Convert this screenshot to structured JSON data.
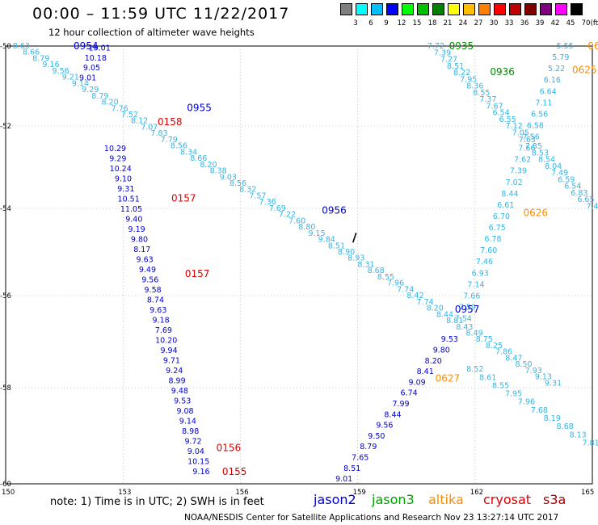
{
  "header": {
    "title": "00:00 – 11:59 UTC 11/22/2017",
    "subtitle": "12 hour collection of altimeter wave heights"
  },
  "legend": {
    "unit": "(ft)",
    "bins": [
      {
        "label": "3",
        "color": "#7f7f7f"
      },
      {
        "label": "6",
        "color": "#00ffff"
      },
      {
        "label": "9",
        "color": "#00bfff"
      },
      {
        "label": "12",
        "color": "#0000ff"
      },
      {
        "label": "15",
        "color": "#00ff00"
      },
      {
        "label": "18",
        "color": "#00c000"
      },
      {
        "label": "21",
        "color": "#008000"
      },
      {
        "label": "24",
        "color": "#ffff00"
      },
      {
        "label": "27",
        "color": "#ffbf00"
      },
      {
        "label": "30",
        "color": "#ff8000"
      },
      {
        "label": "33",
        "color": "#ff0000"
      },
      {
        "label": "36",
        "color": "#c00000"
      },
      {
        "label": "39",
        "color": "#800000"
      },
      {
        "label": "42",
        "color": "#800080"
      },
      {
        "label": "45",
        "color": "#ff00ff"
      },
      {
        "label": "70",
        "color": "#000000"
      }
    ]
  },
  "axes": {
    "lat_labels": [
      "-50",
      "-52",
      "-54",
      "-56",
      "-58",
      "-60"
    ],
    "lon_labels": [
      "150",
      "153",
      "156",
      "159",
      "162",
      "165"
    ]
  },
  "footer": {
    "note": "note: 1) Time is in UTC; 2) SWH is in feet",
    "satellites": [
      {
        "name": "jason2",
        "color": "#0000cc"
      },
      {
        "name": "jason3",
        "color": "#00a000"
      },
      {
        "name": "altika",
        "color": "#ff8c00"
      },
      {
        "name": "cryosat",
        "color": "#dd0000"
      },
      {
        "name": "s3a",
        "color": "#aa0000"
      }
    ],
    "credit": "NOAA/NESDIS Center for Satellite Applications and Research    Nov 23 13:27:14 UTC 2017"
  },
  "map_data": {
    "colors": {
      "blue": "#0000cc",
      "cyan": "#33b5e5",
      "red": "#dd0000",
      "green": "#008800",
      "orange": "#ff8c00"
    },
    "time_labels": [
      {
        "text": "0954",
        "sat": "blue",
        "lon": 152.05,
        "lat": -50.0
      },
      {
        "text": "0955",
        "sat": "blue",
        "lon": 154.95,
        "lat": -51.55
      },
      {
        "text": "0956",
        "sat": "blue",
        "lon": 158.4,
        "lat": -54.05
      },
      {
        "text": "0957",
        "sat": "blue",
        "lon": 161.8,
        "lat": -56.3
      },
      {
        "text": "0158",
        "sat": "red",
        "lon": 154.2,
        "lat": -51.9
      },
      {
        "text": "0157",
        "sat": "red",
        "lon": 154.55,
        "lat": -53.75
      },
      {
        "text": "0157",
        "sat": "red",
        "lon": 154.9,
        "lat": -55.5
      },
      {
        "text": "0156",
        "sat": "red",
        "lon": 155.7,
        "lat": -59.25
      },
      {
        "text": "0155",
        "sat": "red",
        "lon": 155.85,
        "lat": -59.75
      },
      {
        "text": "0935",
        "sat": "green",
        "lon": 161.65,
        "lat": -50.0
      },
      {
        "text": "0936",
        "sat": "green",
        "lon": 162.7,
        "lat": -50.65
      },
      {
        "text": "0624",
        "sat": "orange",
        "lon": 165.2,
        "lat": -50.0
      },
      {
        "text": "0625",
        "sat": "orange",
        "lon": 164.8,
        "lat": -50.6
      },
      {
        "text": "0626",
        "sat": "orange",
        "lon": 163.55,
        "lat": -54.1
      },
      {
        "text": "0627",
        "sat": "orange",
        "lon": 161.3,
        "lat": -57.8
      }
    ],
    "tracks": [
      {
        "sat": "cyan",
        "start": [
          150.4,
          -50.0
        ],
        "end": [
          164.0,
          -57.9
        ],
        "values": [
          "8.63",
          "8.66",
          "8.79",
          "9.16",
          "9.56",
          "9.21",
          "9.14",
          "9.29",
          "8.79",
          "8.20",
          "7.76",
          "7.52",
          "8.12",
          "7.07",
          "7.83",
          "7.79",
          "8.56",
          "8.34",
          "8.66",
          "8.20",
          "8.38",
          "9.03",
          "8.56",
          "8.32",
          "7.57",
          "7.36",
          "7.69",
          "7.22",
          "7.60",
          "8.80",
          "9.15",
          "9.84",
          "8.51",
          "8.90",
          "8.93",
          "8.31",
          "8.68",
          "8.55",
          "7.96",
          "7.74",
          "8.42",
          "7.74",
          "8.20",
          "8.44",
          "8.81",
          "8.43",
          "8.49",
          "8.75",
          "8.25",
          "7.86",
          "8.47",
          "8.50",
          "7.93",
          "9.13",
          "9.31"
        ]
      },
      {
        "sat": "cyan",
        "start": [
          162.0,
          -57.6
        ],
        "end": [
          164.96,
          -59.15
        ],
        "values": [
          "8.52",
          "8.61",
          "8.55",
          "7.95",
          "7.96",
          "7.68",
          "8.19",
          "8.68",
          "8.13",
          "7.81"
        ]
      },
      {
        "sat": "blue",
        "start": [
          152.4,
          -50.05
        ],
        "end": [
          152.1,
          -50.8
        ],
        "values": [
          "10.01",
          "10.18",
          "9.05",
          "9.01"
        ]
      },
      {
        "sat": "blue",
        "start": [
          152.8,
          -52.55
        ],
        "end": [
          155.0,
          -59.75
        ],
        "values": [
          "10.29",
          "9.29",
          "10.24",
          "9.10",
          "9.31",
          "10.51",
          "11.05",
          "9.40",
          "9.19",
          "9.80",
          "8.17",
          "9.63",
          "9.49",
          "9.56",
          "9.58",
          "8.74",
          "9.63",
          "9.18",
          "7.69",
          "10.20",
          "9.94",
          "9.71",
          "9.24",
          "8.99",
          "9.48",
          "9.53",
          "9.08",
          "9.14",
          "8.98",
          "9.72",
          "9.04",
          "10.15",
          "9.16"
        ]
      },
      {
        "sat": "cyan",
        "start": [
          161.0,
          -50.0
        ],
        "end": [
          165.0,
          -53.95
        ],
        "values": [
          "7.72",
          "7.39",
          "7.27",
          "8.51",
          "8.22",
          "7.95",
          "8.36",
          "8.55",
          "7.37",
          "7.67",
          "6.54",
          "6.55",
          "7.12",
          "7.05",
          "7.63",
          "7.85",
          "8.53",
          "8.54",
          "8.04",
          "7.49",
          "6.59",
          "6.54",
          "6.83",
          "6.65",
          "7.4"
        ]
      },
      {
        "sat": "cyan",
        "start": [
          164.3,
          -50.0
        ],
        "end": [
          161.7,
          -56.5
        ],
        "values": [
          "5.55",
          "5.79",
          "5.22",
          "6.16",
          "6.64",
          "7.11",
          "6.56",
          "6.58",
          "7.56",
          "7.66",
          "7.62",
          "7.39",
          "7.02",
          "8.44",
          "6.61",
          "6.70",
          "6.75",
          "6.78",
          "7.60",
          "7.46",
          "6.93",
          "7.14",
          "7.66",
          "7.59",
          "7.54"
        ]
      },
      {
        "sat": "blue",
        "start": [
          161.35,
          -56.95
        ],
        "end": [
          158.65,
          -59.9
        ],
        "values": [
          "9.53",
          "9.80",
          "8.20",
          "8.41",
          "9.09",
          "6.74",
          "7.99",
          "8.44",
          "9.56",
          "9.50",
          "8.79",
          "7.65",
          "8.51",
          "9.01"
        ]
      }
    ]
  }
}
